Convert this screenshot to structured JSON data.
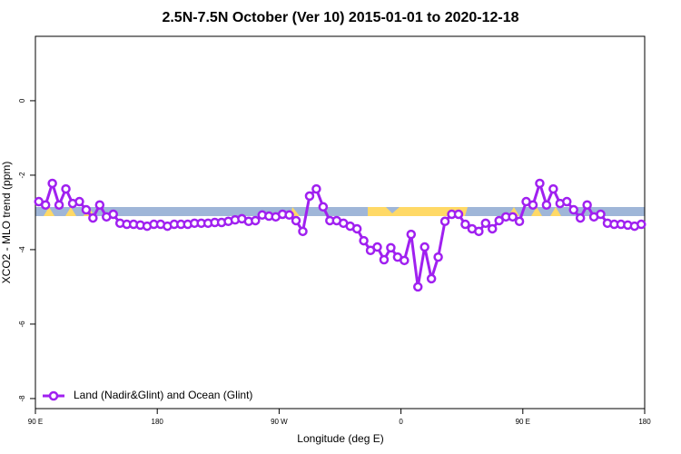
{
  "chart_data": {
    "type": "line",
    "title": "2.5N-7.5N October (Ver 10)   2015-01-01 to 2020-12-18",
    "xlabel": "Longitude (deg E)",
    "ylabel": "XCO2 - MLO trend (ppm)",
    "x": [
      92.5,
      97.5,
      102.5,
      107.5,
      112.5,
      117.5,
      122.5,
      127.5,
      132.5,
      137.5,
      142.5,
      147.5,
      152.5,
      157.5,
      162.5,
      167.5,
      172.5,
      177.5,
      182.5,
      187.5,
      192.5,
      197.5,
      202.5,
      207.5,
      212.5,
      217.5,
      222.5,
      227.5,
      232.5,
      237.5,
      242.5,
      247.5,
      252.5,
      257.5,
      262.5,
      267.5,
      272.5,
      277.5,
      282.5,
      287.5,
      292.5,
      297.5,
      302.5,
      307.5,
      312.5,
      317.5,
      322.5,
      327.5,
      332.5,
      337.5,
      342.5,
      347.5,
      352.5,
      357.5,
      362.5,
      367.5,
      372.5,
      377.5,
      382.5,
      387.5,
      392.5,
      397.5,
      402.5,
      407.5,
      412.5,
      417.5,
      422.5,
      427.5,
      432.5,
      437.5,
      442.5,
      447.5,
      452.5,
      457.5,
      462.5,
      467.5,
      472.5,
      477.5,
      482.5,
      487.5,
      492.5,
      497.5,
      502.5,
      507.5,
      512.5,
      517.5,
      522.5,
      527.5,
      532.5,
      537.5
    ],
    "series": [
      {
        "name": "Land (Nadir&Glint) and Ocean (Glint)",
        "color": "#a020f0",
        "values": [
          -2.71,
          -2.8,
          -2.22,
          -2.8,
          -2.37,
          -2.76,
          -2.71,
          -2.93,
          -3.15,
          -2.8,
          -3.12,
          -3.05,
          -3.29,
          -3.32,
          -3.32,
          -3.34,
          -3.37,
          -3.32,
          -3.32,
          -3.37,
          -3.32,
          -3.32,
          -3.32,
          -3.29,
          -3.29,
          -3.29,
          -3.27,
          -3.27,
          -3.24,
          -3.2,
          -3.17,
          -3.24,
          -3.22,
          -3.07,
          -3.1,
          -3.12,
          -3.05,
          -3.07,
          -3.22,
          -3.51,
          -2.56,
          -2.37,
          -2.85,
          -3.22,
          -3.22,
          -3.29,
          -3.37,
          -3.44,
          -3.76,
          -4.02,
          -3.93,
          -4.27,
          -3.95,
          -4.2,
          -4.29,
          -3.59,
          -5.0,
          -3.93,
          -4.78,
          -4.2,
          -3.24,
          -3.05,
          -3.05,
          -3.32,
          -3.44,
          -3.51,
          -3.29,
          -3.44,
          -3.22,
          -3.12,
          -3.12,
          -3.24,
          -2.71,
          -2.8,
          -2.22,
          -2.8,
          -2.37,
          -2.76,
          -2.71,
          -2.93,
          -3.15,
          -2.8,
          -3.12,
          -3.05,
          -3.29,
          -3.32,
          -3.32,
          -3.34,
          -3.37,
          -3.32
        ]
      }
    ],
    "xlim": [
      90,
      540
    ],
    "xticks": [
      {
        "value": 90,
        "label": "90 E"
      },
      180,
      {
        "value": 270,
        "label": "90 W"
      },
      {
        "value": 360,
        "label": "0"
      },
      {
        "value": 450,
        "label": "90 E"
      },
      {
        "value": 540,
        "label": "180"
      }
    ],
    "ylim": [
      -8.27,
      1.73
    ],
    "yticks": [
      0,
      -2,
      -4,
      -6,
      -8
    ],
    "legend": "bottom-left"
  }
}
